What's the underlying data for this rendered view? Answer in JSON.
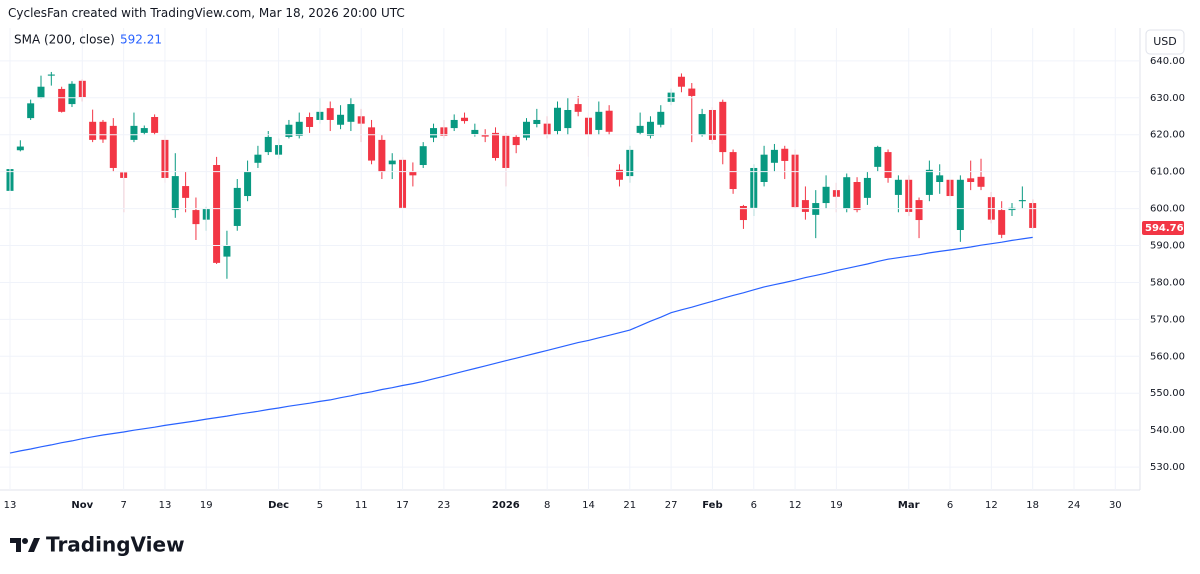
{
  "header": "CyclesFan created with TradingView.com, Mar 18, 2026 20:00 UTC",
  "logo": "TradingView",
  "chart_data": {
    "type": "candlestick",
    "currency": "USD",
    "up_color": "#089981",
    "down_color": "#f23645",
    "grid": true,
    "categories": [
      "13",
      null,
      null,
      null,
      null,
      null,
      null,
      "Nov",
      null,
      null,
      null,
      "7",
      null,
      null,
      null,
      "13",
      null,
      null,
      null,
      "19",
      null,
      null,
      null,
      null,
      null,
      null,
      "Dec",
      null,
      null,
      null,
      "5",
      null,
      null,
      null,
      "11",
      null,
      null,
      null,
      "17",
      null,
      null,
      null,
      "23",
      null,
      null,
      null,
      null,
      null,
      "2026",
      null,
      null,
      null,
      "8",
      null,
      null,
      null,
      "14",
      null,
      null,
      null,
      "21",
      null,
      null,
      null,
      "27",
      null,
      null,
      null,
      "Feb",
      null,
      null,
      null,
      "6",
      null,
      null,
      null,
      "12",
      null,
      null,
      null,
      "19",
      null,
      null,
      null,
      null,
      null,
      null,
      "Mar",
      null,
      null,
      null,
      "6",
      null,
      null,
      null,
      "12",
      null,
      null,
      null,
      "18",
      null,
      null,
      null,
      "24",
      null,
      null,
      null,
      "30"
    ],
    "open": [
      604.8,
      615.8,
      624.5,
      630,
      636,
      632.4,
      628.3,
      634.6,
      623.5,
      623.5,
      622.4,
      609.8,
      618.6,
      620.5,
      624.8,
      618.6,
      599.6,
      606.1,
      599.6,
      597,
      611.8,
      587,
      595.3,
      603.4,
      612.4,
      615.3,
      614.6,
      619.4,
      619.7,
      624.8,
      624,
      627.2,
      622.7,
      623.5,
      625,
      622,
      618.6,
      612,
      613.2,
      610,
      611.8,
      619.2,
      622,
      621.8,
      624.6,
      620.2,
      620,
      620.5,
      619.7,
      619.4,
      619.2,
      622.9,
      623,
      621,
      621.8,
      628.3,
      624.6,
      621.3,
      626.5,
      610.5,
      608.8,
      620.5,
      619.7,
      622.7,
      628.9,
      635.7,
      632.5,
      620,
      626.7,
      628.9,
      615.3,
      600.7,
      600.2,
      607.2,
      612.4,
      616.2,
      614.6,
      602.3,
      598.3,
      601.5,
      605,
      599.9,
      607.2,
      602.9,
      611.3,
      615.3,
      603.7,
      607.8,
      602.3,
      603.7,
      607.2,
      607.8,
      594.2,
      608.2,
      608.6,
      603.1,
      599.6,
      599.6,
      602,
      601.5,
      null,
      null,
      null,
      null,
      null,
      null,
      null,
      null
    ],
    "high": [
      611,
      618.5,
      629.5,
      636,
      637,
      633,
      634.5,
      635,
      626.8,
      624,
      624.5,
      610,
      626,
      622.5,
      625.5,
      620,
      615,
      610,
      603,
      600.5,
      614,
      594,
      608,
      613,
      617,
      621,
      619,
      624,
      626,
      626,
      630,
      629,
      628,
      630,
      627,
      624,
      620,
      615,
      614,
      612.5,
      618,
      623,
      624,
      625.5,
      626,
      623,
      621.5,
      622,
      620.5,
      620,
      624.5,
      627,
      625,
      629,
      630,
      630.5,
      626,
      629,
      628,
      612,
      617,
      626,
      625,
      628,
      632.5,
      636.6,
      634,
      627,
      627.5,
      629.5,
      616,
      601,
      612,
      617,
      617.5,
      617,
      616,
      606,
      605,
      609,
      607,
      609.5,
      608.5,
      610,
      617,
      616,
      609,
      609,
      603,
      613,
      612,
      608,
      609,
      613,
      613.5,
      604.5,
      602,
      601.5,
      606,
      602.5,
      null,
      null,
      null,
      null,
      null,
      null,
      null,
      null
    ],
    "low": [
      604.5,
      615.5,
      624,
      629.8,
      633.3,
      626,
      627.5,
      629,
      618,
      617.8,
      610,
      599,
      618,
      620,
      620,
      607,
      597.5,
      599,
      591.5,
      594,
      585,
      581,
      594,
      602,
      611,
      614.5,
      613.5,
      619,
      619,
      620.5,
      623,
      621,
      621.5,
      621,
      618,
      612,
      608,
      608,
      600,
      606,
      611,
      618,
      619,
      621,
      623,
      619.5,
      618,
      613,
      606,
      615,
      618.5,
      622,
      619,
      620,
      620,
      625,
      614,
      620,
      620,
      606,
      607,
      620,
      619,
      622,
      628,
      631.5,
      618,
      619.5,
      617.5,
      612,
      604,
      594.5,
      598,
      606,
      610,
      608,
      600,
      597,
      592,
      600,
      599,
      599,
      599,
      601,
      610,
      607,
      599,
      598,
      592,
      602,
      604,
      601,
      591,
      605,
      605,
      596,
      592,
      598,
      600,
      594.5,
      null,
      null,
      null,
      null,
      null,
      null,
      null,
      null
    ],
    "close": [
      610.7,
      616.8,
      628.5,
      633,
      636.3,
      626.2,
      633.8,
      630.2,
      618.6,
      618.7,
      611,
      608.3,
      622.4,
      621.8,
      620.5,
      608.3,
      608.8,
      602.9,
      595.8,
      599.9,
      585.3,
      589.9,
      605.6,
      610,
      614.6,
      619.4,
      617.2,
      622.7,
      623.5,
      622.1,
      626.2,
      624,
      625.4,
      628.3,
      623,
      613,
      610,
      613,
      600.2,
      609,
      616.9,
      621.8,
      619.7,
      624,
      623.7,
      621.3,
      619.5,
      613.7,
      611,
      617.2,
      623.5,
      624,
      620,
      627.3,
      626.7,
      626.2,
      620,
      626.2,
      620.8,
      607.8,
      615.9,
      622.4,
      623.5,
      626.2,
      631.4,
      633,
      630.5,
      625.6,
      618.6,
      615.3,
      605.3,
      596.9,
      611,
      614.6,
      615.9,
      612.9,
      600.4,
      599.1,
      601.5,
      605.9,
      603.2,
      608.5,
      599.6,
      608.3,
      616.7,
      608.3,
      607.8,
      599.1,
      596.9,
      610.5,
      609,
      603.4,
      607.8,
      607.2,
      605.9,
      597,
      592.9,
      600.2,
      602.3,
      594.76,
      null,
      null,
      null,
      null,
      null,
      null,
      null,
      null
    ],
    "sma": {
      "name": "SMA (200, close)",
      "color": "#2962ff",
      "values": [
        533.8,
        534.4,
        534.9,
        535.5,
        536.0,
        536.6,
        537.1,
        537.7,
        538.2,
        538.7,
        539.1,
        539.5,
        540.0,
        540.4,
        540.8,
        541.3,
        541.7,
        542.1,
        542.5,
        543.0,
        543.4,
        543.8,
        544.3,
        544.7,
        545.1,
        545.6,
        546.0,
        546.5,
        546.9,
        547.3,
        547.8,
        548.2,
        548.8,
        549.3,
        549.9,
        550.4,
        551.0,
        551.5,
        552.1,
        552.6,
        553.2,
        553.9,
        554.6,
        555.3,
        556.0,
        556.7,
        557.4,
        558.1,
        558.8,
        559.5,
        560.2,
        560.9,
        561.6,
        562.3,
        563.0,
        563.7,
        564.3,
        565.0,
        565.7,
        566.4,
        567.1,
        568.3,
        569.5,
        570.6,
        571.8,
        572.6,
        573.3,
        574.1,
        574.9,
        575.7,
        576.5,
        577.2,
        578.0,
        578.8,
        579.4,
        580.0,
        580.6,
        581.3,
        581.9,
        582.5,
        583.2,
        583.8,
        584.4,
        585.0,
        585.7,
        586.3,
        586.7,
        587.1,
        587.5,
        588.0,
        588.4,
        588.8,
        589.2,
        589.6,
        590.1,
        590.5,
        590.9,
        591.4,
        591.8,
        592.21,
        null,
        null,
        null,
        null,
        null,
        null,
        null,
        null
      ]
    },
    "ylim": [
      523.8,
      648.9
    ],
    "yticks": [
      {
        "value": 530,
        "label": "530.00"
      },
      {
        "value": 540,
        "label": "540.00"
      },
      {
        "value": 550,
        "label": "550.00"
      },
      {
        "value": 560,
        "label": "560.00"
      },
      {
        "value": 570,
        "label": "570.00"
      },
      {
        "value": 580,
        "label": "580.00"
      },
      {
        "value": 590,
        "label": "590.00"
      },
      {
        "value": 600,
        "label": "600.00"
      },
      {
        "value": 610,
        "label": "610.00"
      },
      {
        "value": 620,
        "label": "620.00"
      },
      {
        "value": 630,
        "label": "630.00"
      },
      {
        "value": 640,
        "label": "640.00"
      }
    ]
  }
}
